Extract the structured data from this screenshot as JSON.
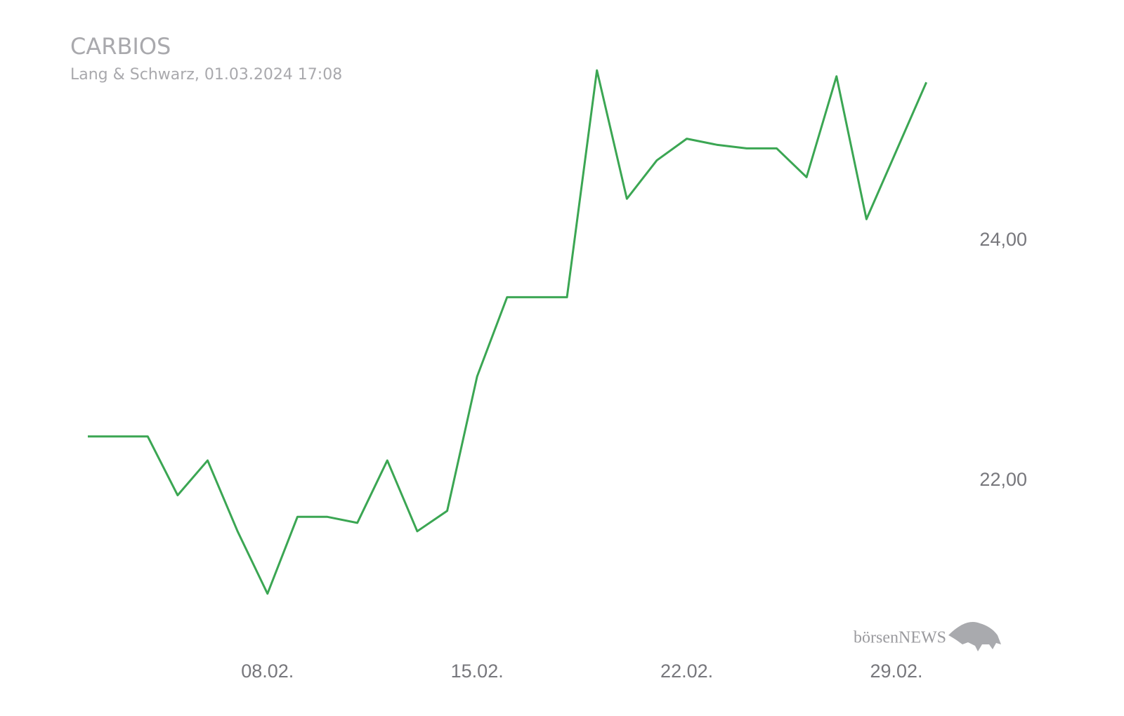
{
  "chart_data": {
    "type": "line",
    "title": "CARBIOS",
    "subtitle": "Lang & Schwarz, 01.03.2024 17:08",
    "watermark": "börsenNEWS",
    "categories": [
      null,
      null,
      null,
      null,
      null,
      null,
      "08.02.",
      null,
      null,
      null,
      null,
      null,
      null,
      "15.02.",
      null,
      null,
      null,
      null,
      null,
      null,
      "22.02.",
      null,
      null,
      null,
      null,
      null,
      null,
      "29.02.",
      null
    ],
    "series": [
      {
        "name": "CARBIOS",
        "color": "#3ba653",
        "values": [
          22.37,
          22.37,
          22.37,
          21.88,
          22.17,
          21.58,
          21.06,
          21.7,
          21.7,
          21.65,
          22.17,
          21.58,
          21.75,
          22.87,
          23.53,
          23.53,
          23.53,
          25.42,
          24.35,
          24.67,
          24.85,
          24.8,
          24.77,
          24.77,
          24.53,
          25.37,
          24.18,
          24.75,
          25.32
        ]
      }
    ],
    "ylim": [
      20.5,
      25.5
    ],
    "yticks": [
      {
        "value": 22,
        "label": "22,00"
      },
      {
        "value": 24,
        "label": "24,00"
      }
    ],
    "grid": false
  }
}
